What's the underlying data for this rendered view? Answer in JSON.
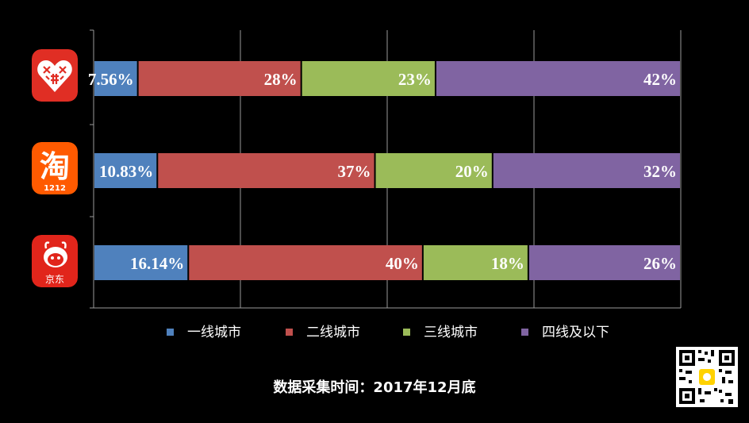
{
  "chart_data": {
    "type": "bar",
    "orientation": "horizontal",
    "stacked": true,
    "categories": [
      "拼多多",
      "淘宝",
      "京东"
    ],
    "series": [
      {
        "name": "一线城市",
        "values": [
          7.56,
          10.83,
          16.14
        ],
        "labels": [
          "7.56%",
          "10.83%",
          "16.14%"
        ],
        "color": "#4f81bd"
      },
      {
        "name": "二线城市",
        "values": [
          28,
          37,
          40
        ],
        "labels": [
          "28%",
          "37%",
          "40%"
        ],
        "color": "#c0504d"
      },
      {
        "name": "三线城市",
        "values": [
          23,
          20,
          18
        ],
        "labels": [
          "23%",
          "20%",
          "18%"
        ],
        "color": "#9bbb59"
      },
      {
        "name": "四线及以下",
        "values": [
          42,
          32,
          26
        ],
        "labels": [
          "42%",
          "32%",
          "26%"
        ],
        "color": "#8064a2"
      }
    ],
    "xlim": [
      0,
      100
    ],
    "grid": true,
    "legend_position": "bottom",
    "icons": [
      "pinduoduo-logo-icon",
      "taobao-logo-icon",
      "jd-logo-icon"
    ]
  },
  "icon_text": {
    "taobao_glyph": "淘",
    "taobao_sub": "1212",
    "jd_sub": "京东"
  },
  "footer": {
    "note": "数据采集时间：2017年12月底"
  },
  "colors": {
    "background": "#000000",
    "grid": "#9a9a9a",
    "pdd_red": "#e02e24",
    "taobao_orange": "#ff5a00",
    "jd_red": "#e1251b"
  }
}
